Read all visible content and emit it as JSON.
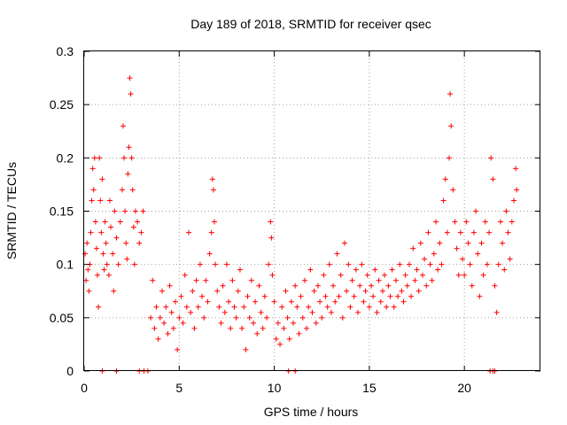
{
  "chart_data": {
    "type": "scatter",
    "title": "Day 189 of 2018, SRMTID for receiver qsec",
    "xlabel": "GPS time / hours",
    "ylabel": "SRMTID / TECUs",
    "xlim": [
      0,
      24
    ],
    "ylim": [
      0,
      0.3
    ],
    "grid": true,
    "marker": "+",
    "color": "#ff0000",
    "x_ticks": [
      0,
      5,
      10,
      15,
      20
    ],
    "x_tick_labels": [
      "0",
      "5",
      "10",
      "15",
      "20"
    ],
    "y_ticks": [
      0,
      0.05,
      0.1,
      0.15,
      0.2,
      0.25,
      0.3
    ],
    "y_tick_labels": [
      "0",
      "0.05",
      "0.1",
      "0.15",
      "0.2",
      "0.25",
      "0.3"
    ],
    "series": [
      {
        "name": "SRMTID",
        "points": [
          [
            0.05,
            0.11
          ],
          [
            0.1,
            0.085
          ],
          [
            0.15,
            0.12
          ],
          [
            0.2,
            0.095
          ],
          [
            0.25,
            0.075
          ],
          [
            0.3,
            0.1
          ],
          [
            0.35,
            0.13
          ],
          [
            0.4,
            0.16
          ],
          [
            0.45,
            0.19
          ],
          [
            0.5,
            0.17
          ],
          [
            0.55,
            0.2
          ],
          [
            0.6,
            0.14
          ],
          [
            0.65,
            0.115
          ],
          [
            0.7,
            0.09
          ],
          [
            0.75,
            0.06
          ],
          [
            0.8,
            0.2
          ],
          [
            0.85,
            0.16
          ],
          [
            0.9,
            0.13
          ],
          [
            0.95,
            0.18
          ],
          [
            1.0,
            0.11
          ],
          [
            1.05,
            0.095
          ],
          [
            1.1,
            0.14
          ],
          [
            1.15,
            0.12
          ],
          [
            1.2,
            0.1
          ],
          [
            1.3,
            0.09
          ],
          [
            1.35,
            0.16
          ],
          [
            1.4,
            0.135
          ],
          [
            1.5,
            0.11
          ],
          [
            1.55,
            0.075
          ],
          [
            1.6,
            0.15
          ],
          [
            1.7,
            0.125
          ],
          [
            1.8,
            0.1
          ],
          [
            1.9,
            0.14
          ],
          [
            2.0,
            0.17
          ],
          [
            2.05,
            0.23
          ],
          [
            2.1,
            0.2
          ],
          [
            2.15,
            0.15
          ],
          [
            2.2,
            0.12
          ],
          [
            2.25,
            0.105
          ],
          [
            2.3,
            0.185
          ],
          [
            2.35,
            0.21
          ],
          [
            2.4,
            0.275
          ],
          [
            2.45,
            0.26
          ],
          [
            2.5,
            0.2
          ],
          [
            2.55,
            0.17
          ],
          [
            2.6,
            0.135
          ],
          [
            2.65,
            0.1
          ],
          [
            2.7,
            0.15
          ],
          [
            2.8,
            0.14
          ],
          [
            2.9,
            0.12
          ],
          [
            3.0,
            0.13
          ],
          [
            3.1,
            0.15
          ],
          [
            3.5,
            0.05
          ],
          [
            3.6,
            0.085
          ],
          [
            3.7,
            0.04
          ],
          [
            3.8,
            0.06
          ],
          [
            3.9,
            0.03
          ],
          [
            4.0,
            0.05
          ],
          [
            4.1,
            0.075
          ],
          [
            4.2,
            0.045
          ],
          [
            4.3,
            0.06
          ],
          [
            4.4,
            0.035
          ],
          [
            4.5,
            0.08
          ],
          [
            4.6,
            0.055
          ],
          [
            4.7,
            0.04
          ],
          [
            4.8,
            0.065
          ],
          [
            4.9,
            0.02
          ],
          [
            5.0,
            0.05
          ],
          [
            5.1,
            0.07
          ],
          [
            5.2,
            0.045
          ],
          [
            5.3,
            0.09
          ],
          [
            5.4,
            0.06
          ],
          [
            5.5,
            0.13
          ],
          [
            5.6,
            0.055
          ],
          [
            5.7,
            0.075
          ],
          [
            5.8,
            0.04
          ],
          [
            5.9,
            0.085
          ],
          [
            6.0,
            0.06
          ],
          [
            6.1,
            0.1
          ],
          [
            6.2,
            0.07
          ],
          [
            6.3,
            0.05
          ],
          [
            6.4,
            0.085
          ],
          [
            6.5,
            0.065
          ],
          [
            6.6,
            0.11
          ],
          [
            6.7,
            0.13
          ],
          [
            6.75,
            0.18
          ],
          [
            6.8,
            0.17
          ],
          [
            6.85,
            0.14
          ],
          [
            6.9,
            0.1
          ],
          [
            7.0,
            0.075
          ],
          [
            7.1,
            0.06
          ],
          [
            7.2,
            0.045
          ],
          [
            7.3,
            0.08
          ],
          [
            7.4,
            0.055
          ],
          [
            7.5,
            0.1
          ],
          [
            7.6,
            0.065
          ],
          [
            7.7,
            0.04
          ],
          [
            7.8,
            0.085
          ],
          [
            7.9,
            0.06
          ],
          [
            8.0,
            0.05
          ],
          [
            8.1,
            0.075
          ],
          [
            8.2,
            0.095
          ],
          [
            8.3,
            0.04
          ],
          [
            8.4,
            0.06
          ],
          [
            8.5,
            0.02
          ],
          [
            8.6,
            0.07
          ],
          [
            8.7,
            0.05
          ],
          [
            8.8,
            0.085
          ],
          [
            8.9,
            0.045
          ],
          [
            9.0,
            0.065
          ],
          [
            9.1,
            0.035
          ],
          [
            9.2,
            0.08
          ],
          [
            9.3,
            0.055
          ],
          [
            9.4,
            0.04
          ],
          [
            9.5,
            0.07
          ],
          [
            9.6,
            0.05
          ],
          [
            9.7,
            0.1
          ],
          [
            9.8,
            0.14
          ],
          [
            9.85,
            0.125
          ],
          [
            9.9,
            0.09
          ],
          [
            10.0,
            0.065
          ],
          [
            10.1,
            0.03
          ],
          [
            10.2,
            0.045
          ],
          [
            10.3,
            0.025
          ],
          [
            10.4,
            0.06
          ],
          [
            10.5,
            0.04
          ],
          [
            10.6,
            0.075
          ],
          [
            10.7,
            0.05
          ],
          [
            10.8,
            0.03
          ],
          [
            10.9,
            0.065
          ],
          [
            11.0,
            0.045
          ],
          [
            11.1,
            0.08
          ],
          [
            11.2,
            0.06
          ],
          [
            11.3,
            0.035
          ],
          [
            11.4,
            0.07
          ],
          [
            11.5,
            0.05
          ],
          [
            11.6,
            0.085
          ],
          [
            11.7,
            0.04
          ],
          [
            11.8,
            0.06
          ],
          [
            11.9,
            0.095
          ],
          [
            12.0,
            0.055
          ],
          [
            12.1,
            0.075
          ],
          [
            12.2,
            0.045
          ],
          [
            12.3,
            0.08
          ],
          [
            12.4,
            0.065
          ],
          [
            12.5,
            0.05
          ],
          [
            12.6,
            0.09
          ],
          [
            12.7,
            0.07
          ],
          [
            12.8,
            0.06
          ],
          [
            12.9,
            0.1
          ],
          [
            13.0,
            0.055
          ],
          [
            13.1,
            0.08
          ],
          [
            13.2,
            0.065
          ],
          [
            13.3,
            0.11
          ],
          [
            13.4,
            0.07
          ],
          [
            13.5,
            0.09
          ],
          [
            13.6,
            0.05
          ],
          [
            13.7,
            0.12
          ],
          [
            13.8,
            0.075
          ],
          [
            13.9,
            0.1
          ],
          [
            14.0,
            0.06
          ],
          [
            14.1,
            0.085
          ],
          [
            14.2,
            0.07
          ],
          [
            14.3,
            0.095
          ],
          [
            14.4,
            0.055
          ],
          [
            14.5,
            0.08
          ],
          [
            14.6,
            0.1
          ],
          [
            14.7,
            0.065
          ],
          [
            14.8,
            0.075
          ],
          [
            14.9,
            0.09
          ],
          [
            15.0,
            0.06
          ],
          [
            15.1,
            0.08
          ],
          [
            15.2,
            0.07
          ],
          [
            15.3,
            0.095
          ],
          [
            15.4,
            0.055
          ],
          [
            15.5,
            0.085
          ],
          [
            15.6,
            0.065
          ],
          [
            15.7,
            0.075
          ],
          [
            15.8,
            0.09
          ],
          [
            15.9,
            0.06
          ],
          [
            16.0,
            0.08
          ],
          [
            16.1,
            0.07
          ],
          [
            16.2,
            0.095
          ],
          [
            16.3,
            0.06
          ],
          [
            16.4,
            0.085
          ],
          [
            16.5,
            0.07
          ],
          [
            16.6,
            0.1
          ],
          [
            16.7,
            0.075
          ],
          [
            16.8,
            0.065
          ],
          [
            16.9,
            0.09
          ],
          [
            17.0,
            0.08
          ],
          [
            17.1,
            0.1
          ],
          [
            17.2,
            0.07
          ],
          [
            17.3,
            0.115
          ],
          [
            17.4,
            0.085
          ],
          [
            17.5,
            0.095
          ],
          [
            17.6,
            0.075
          ],
          [
            17.7,
            0.12
          ],
          [
            17.8,
            0.09
          ],
          [
            17.9,
            0.105
          ],
          [
            18.0,
            0.08
          ],
          [
            18.1,
            0.13
          ],
          [
            18.2,
            0.1
          ],
          [
            18.3,
            0.085
          ],
          [
            18.4,
            0.11
          ],
          [
            18.5,
            0.14
          ],
          [
            18.6,
            0.095
          ],
          [
            18.7,
            0.12
          ],
          [
            18.8,
            0.1
          ],
          [
            18.9,
            0.16
          ],
          [
            19.0,
            0.18
          ],
          [
            19.1,
            0.13
          ],
          [
            19.2,
            0.2
          ],
          [
            19.25,
            0.26
          ],
          [
            19.3,
            0.23
          ],
          [
            19.4,
            0.17
          ],
          [
            19.5,
            0.14
          ],
          [
            19.6,
            0.115
          ],
          [
            19.7,
            0.09
          ],
          [
            19.8,
            0.13
          ],
          [
            19.9,
            0.105
          ],
          [
            20.0,
            0.09
          ],
          [
            20.1,
            0.14
          ],
          [
            20.2,
            0.12
          ],
          [
            20.3,
            0.1
          ],
          [
            20.4,
            0.08
          ],
          [
            20.5,
            0.13
          ],
          [
            20.6,
            0.15
          ],
          [
            20.7,
            0.11
          ],
          [
            20.8,
            0.07
          ],
          [
            20.9,
            0.12
          ],
          [
            21.0,
            0.09
          ],
          [
            21.1,
            0.14
          ],
          [
            21.2,
            0.1
          ],
          [
            21.3,
            0.13
          ],
          [
            21.4,
            0.2
          ],
          [
            21.5,
            0.18
          ],
          [
            21.6,
            0.08
          ],
          [
            21.7,
            0.055
          ],
          [
            21.8,
            0.1
          ],
          [
            21.9,
            0.14
          ],
          [
            22.0,
            0.12
          ],
          [
            22.1,
            0.095
          ],
          [
            22.2,
            0.15
          ],
          [
            22.3,
            0.13
          ],
          [
            22.4,
            0.105
          ],
          [
            22.5,
            0.14
          ],
          [
            22.6,
            0.16
          ],
          [
            22.7,
            0.19
          ],
          [
            22.75,
            0.17
          ]
        ],
        "zero_points": [
          0.95,
          1.7,
          2.9,
          3.15,
          3.35,
          10.75,
          11.1,
          21.35,
          21.5,
          21.6
        ]
      }
    ]
  }
}
